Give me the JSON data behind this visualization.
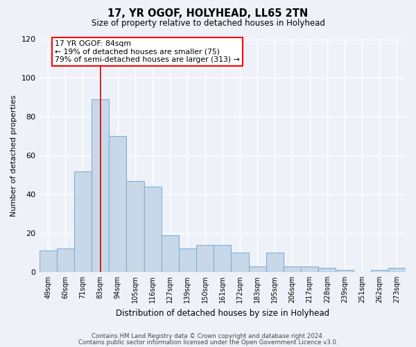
{
  "title": "17, YR OGOF, HOLYHEAD, LL65 2TN",
  "subtitle": "Size of property relative to detached houses in Holyhead",
  "xlabel": "Distribution of detached houses by size in Holyhead",
  "ylabel": "Number of detached properties",
  "categories": [
    "49sqm",
    "60sqm",
    "71sqm",
    "83sqm",
    "94sqm",
    "105sqm",
    "116sqm",
    "127sqm",
    "139sqm",
    "150sqm",
    "161sqm",
    "172sqm",
    "183sqm",
    "195sqm",
    "206sqm",
    "217sqm",
    "228sqm",
    "239sqm",
    "251sqm",
    "262sqm",
    "273sqm"
  ],
  "values": [
    11,
    12,
    52,
    89,
    70,
    47,
    44,
    19,
    12,
    14,
    14,
    10,
    3,
    10,
    3,
    3,
    2,
    1,
    0,
    1,
    2
  ],
  "bar_color": "#c8d8e8",
  "bar_edge_color": "#7fb0d8",
  "annotation_line_index": 3,
  "annotation_line_color": "#cc0000",
  "annotation_box_text": "17 YR OGOF: 84sqm\n← 19% of detached houses are smaller (75)\n79% of semi-detached houses are larger (313) →",
  "ylim": [
    0,
    120
  ],
  "yticks": [
    0,
    20,
    40,
    60,
    80,
    100,
    120
  ],
  "background_color": "#eef2f8",
  "grid_color": "#ffffff",
  "footer1": "Contains HM Land Registry data © Crown copyright and database right 2024.",
  "footer2": "Contains public sector information licensed under the Open Government Licence v3.0."
}
